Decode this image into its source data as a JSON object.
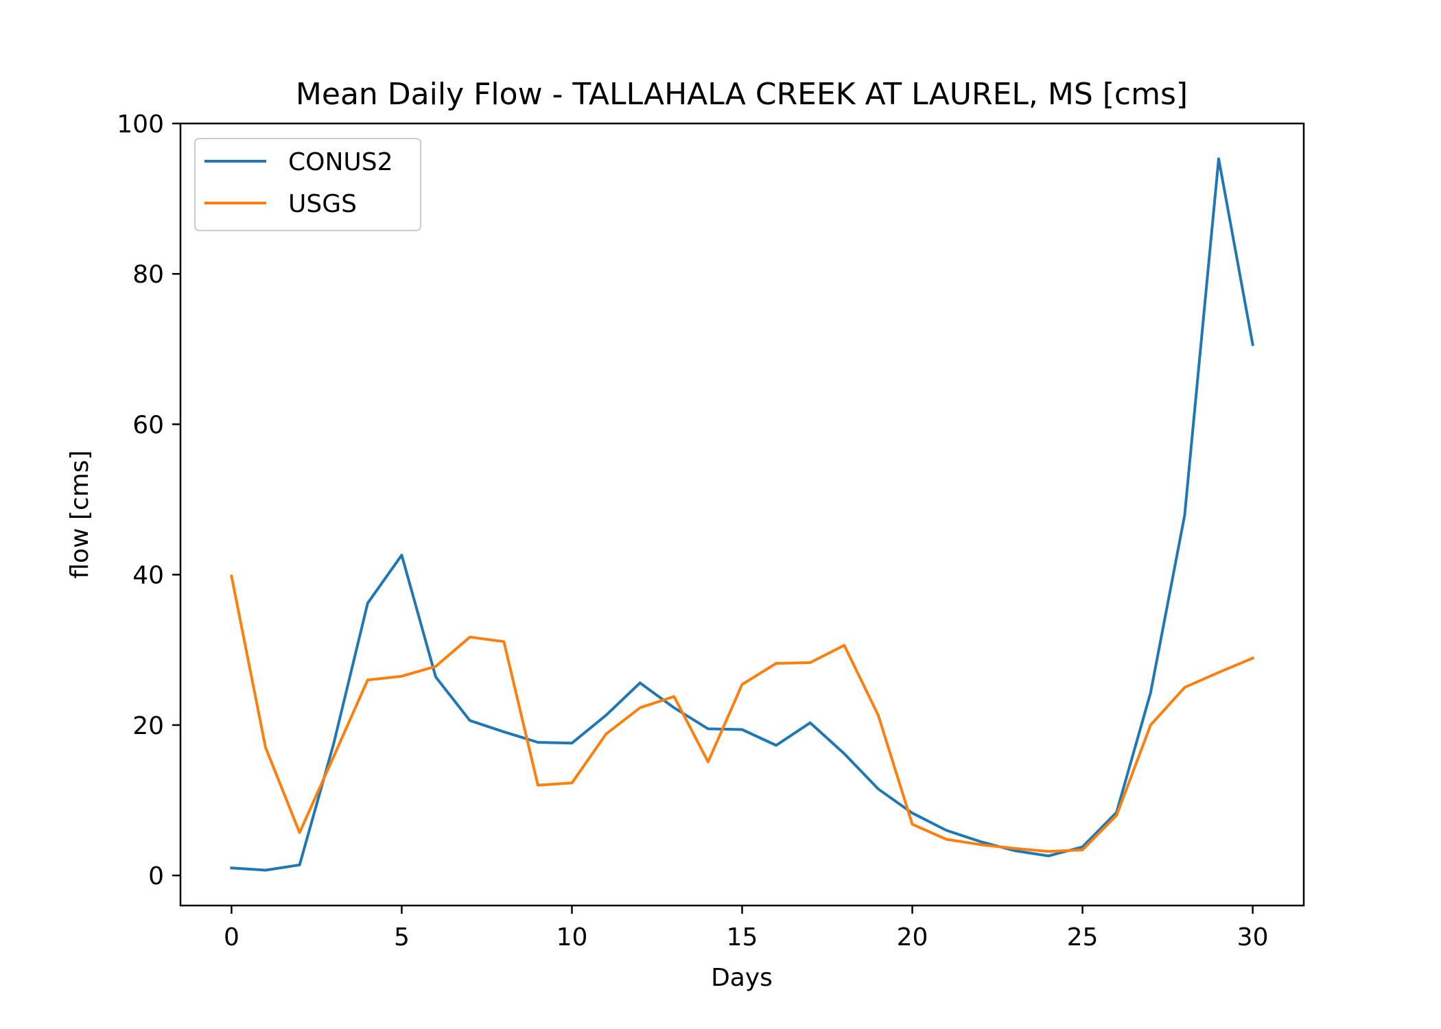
{
  "chart_data": {
    "type": "line",
    "title": "Mean Daily Flow - TALLAHALA CREEK AT LAUREL, MS [cms]",
    "xlabel": "Days",
    "ylabel": "flow [cms]",
    "xlim": [
      -1.5,
      31.5
    ],
    "ylim": [
      -4,
      100
    ],
    "xticks": [
      0,
      5,
      10,
      15,
      20,
      25,
      30
    ],
    "yticks": [
      0,
      20,
      40,
      60,
      80,
      100
    ],
    "grid": false,
    "legend_position": "top-left",
    "x": [
      0,
      1,
      2,
      3,
      4,
      5,
      6,
      7,
      8,
      9,
      10,
      11,
      12,
      13,
      14,
      15,
      16,
      17,
      18,
      19,
      20,
      21,
      22,
      23,
      24,
      25,
      26,
      27,
      28,
      29,
      30
    ],
    "series": [
      {
        "name": "CONUS2",
        "color": "#1f77b4",
        "values": [
          1.0,
          0.7,
          1.4,
          17.5,
          36.2,
          42.6,
          26.4,
          20.6,
          19.1,
          17.7,
          17.6,
          21.3,
          25.6,
          22.3,
          19.5,
          19.4,
          17.3,
          20.3,
          16.2,
          11.5,
          8.3,
          6.0,
          4.5,
          3.3,
          2.6,
          3.8,
          8.4,
          24.3,
          47.9,
          95.3,
          70.6
        ]
      },
      {
        "name": "USGS",
        "color": "#ff7f0e",
        "values": [
          39.8,
          17.0,
          5.7,
          15.8,
          26.0,
          26.5,
          27.8,
          31.7,
          31.1,
          12.0,
          12.3,
          18.8,
          22.3,
          23.8,
          15.1,
          25.4,
          28.2,
          28.3,
          30.6,
          21.3,
          6.8,
          4.8,
          4.1,
          3.6,
          3.2,
          3.4,
          8.0,
          20.0,
          25.0,
          27.0,
          28.9
        ]
      }
    ]
  }
}
